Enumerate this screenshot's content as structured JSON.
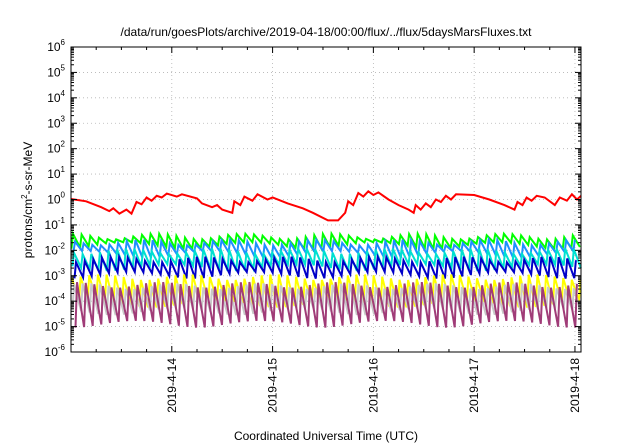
{
  "chart_data": {
    "type": "line",
    "title": "/data/run/goesPlots/archive/2019-04-18/00:00/flux/../flux/5daysMarsFluxes.txt",
    "xlabel": "Coordinated Universal Time (UTC)",
    "ylabel": "protons/cm²-s-sr-MeV",
    "ylabel_parts": {
      "pre": "protons/cm",
      "sup": "2",
      "post": "-s-sr-MeV"
    },
    "yscale": "log",
    "ylim_exp": [
      -6,
      6
    ],
    "y_tick_base": "10",
    "y_tick_exps": [
      "-6",
      "-5",
      "-4",
      "-3",
      "-2",
      "-1",
      "0",
      "1",
      "2",
      "3",
      "4",
      "5",
      "6"
    ],
    "xlim_days": [
      13.0,
      18.06
    ],
    "x_ticks": [
      {
        "day": 14,
        "label": "2019-4-14"
      },
      {
        "day": 15,
        "label": "2019-4-15"
      },
      {
        "day": 16,
        "label": "2019-4-16"
      },
      {
        "day": 17,
        "label": "2019-4-17"
      },
      {
        "day": 18,
        "label": "2019-4-18"
      }
    ],
    "grid": true,
    "series": [
      {
        "color": "#ff0000",
        "kind": "smooth",
        "points": [
          [
            13.0,
            1.05
          ],
          [
            13.15,
            0.85
          ],
          [
            13.3,
            0.5
          ],
          [
            13.38,
            0.35
          ],
          [
            13.42,
            0.45
          ],
          [
            13.48,
            0.28
          ],
          [
            13.55,
            0.4
          ],
          [
            13.6,
            0.28
          ],
          [
            13.65,
            0.8
          ],
          [
            13.7,
            0.65
          ],
          [
            13.75,
            1.2
          ],
          [
            13.8,
            0.9
          ],
          [
            13.85,
            1.4
          ],
          [
            13.9,
            1.2
          ],
          [
            13.95,
            1.7
          ],
          [
            14.05,
            1.3
          ],
          [
            14.1,
            1.6
          ],
          [
            14.25,
            1.1
          ],
          [
            14.3,
            0.7
          ],
          [
            14.4,
            0.5
          ],
          [
            14.45,
            0.6
          ],
          [
            14.5,
            0.4
          ],
          [
            14.6,
            0.3
          ],
          [
            14.62,
            0.85
          ],
          [
            14.68,
            0.6
          ],
          [
            14.72,
            1.3
          ],
          [
            14.8,
            0.9
          ],
          [
            14.85,
            1.6
          ],
          [
            14.95,
            1.0
          ],
          [
            15.0,
            1.2
          ],
          [
            15.15,
            0.7
          ],
          [
            15.3,
            0.45
          ],
          [
            15.4,
            0.3
          ],
          [
            15.55,
            0.15
          ],
          [
            15.65,
            0.15
          ],
          [
            15.72,
            0.3
          ],
          [
            15.75,
            0.85
          ],
          [
            15.8,
            0.6
          ],
          [
            15.85,
            1.8
          ],
          [
            15.9,
            1.3
          ],
          [
            15.95,
            2.1
          ],
          [
            16.0,
            1.5
          ],
          [
            16.05,
            1.9
          ],
          [
            16.15,
            1.0
          ],
          [
            16.25,
            0.6
          ],
          [
            16.35,
            0.4
          ],
          [
            16.4,
            0.3
          ],
          [
            16.42,
            0.6
          ],
          [
            16.47,
            0.4
          ],
          [
            16.52,
            0.7
          ],
          [
            16.57,
            0.5
          ],
          [
            16.62,
            1.0
          ],
          [
            16.67,
            0.8
          ],
          [
            16.72,
            1.4
          ],
          [
            16.77,
            1.0
          ],
          [
            16.82,
            1.6
          ],
          [
            17.0,
            1.5
          ],
          [
            17.15,
            1.0
          ],
          [
            17.3,
            0.6
          ],
          [
            17.4,
            0.4
          ],
          [
            17.43,
            0.8
          ],
          [
            17.48,
            0.6
          ],
          [
            17.52,
            1.2
          ],
          [
            17.57,
            0.9
          ],
          [
            17.62,
            1.4
          ],
          [
            17.7,
            1.2
          ],
          [
            17.8,
            0.6
          ],
          [
            17.85,
            1.2
          ],
          [
            17.92,
            0.9
          ],
          [
            17.97,
            1.6
          ],
          [
            18.02,
            1.0
          ],
          [
            18.06,
            1.4
          ]
        ]
      },
      {
        "color": "#00ff00",
        "kind": "sawtooth",
        "period": 0.0855,
        "phase": 0.02,
        "high": 0.036,
        "low": 0.016,
        "base": 1.0
      },
      {
        "color": "#1e90ff",
        "kind": "sawtooth",
        "period": 0.0855,
        "phase": 0.04,
        "high": 0.021,
        "low": 0.0072,
        "base": 1.0
      },
      {
        "color": "#00e0d0",
        "kind": "sawtooth",
        "period": 0.0855,
        "phase": 0.03,
        "high": 0.0095,
        "low": 0.0022,
        "base": 1.0
      },
      {
        "color": "#0000c8",
        "kind": "sawtooth",
        "period": 0.0855,
        "phase": 0.05,
        "high": 0.0045,
        "low": 0.0011,
        "base": 1.0
      },
      {
        "color": "#ffff00",
        "kind": "sawtooth",
        "period": 0.0855,
        "phase": 0.01,
        "high": 0.0009,
        "low": 8e-05,
        "base": 1.0
      },
      {
        "color": "#c8c8c8",
        "kind": "sawtooth",
        "period": 0.0855,
        "phase": 0.03,
        "high": 0.0004,
        "low": 4e-05,
        "base": 1.0
      },
      {
        "color": "#a03c78",
        "kind": "sawtooth",
        "period": 0.0855,
        "phase": 0.06,
        "high": 0.00045,
        "low": 1.3e-05,
        "base": 1.0
      }
    ]
  }
}
